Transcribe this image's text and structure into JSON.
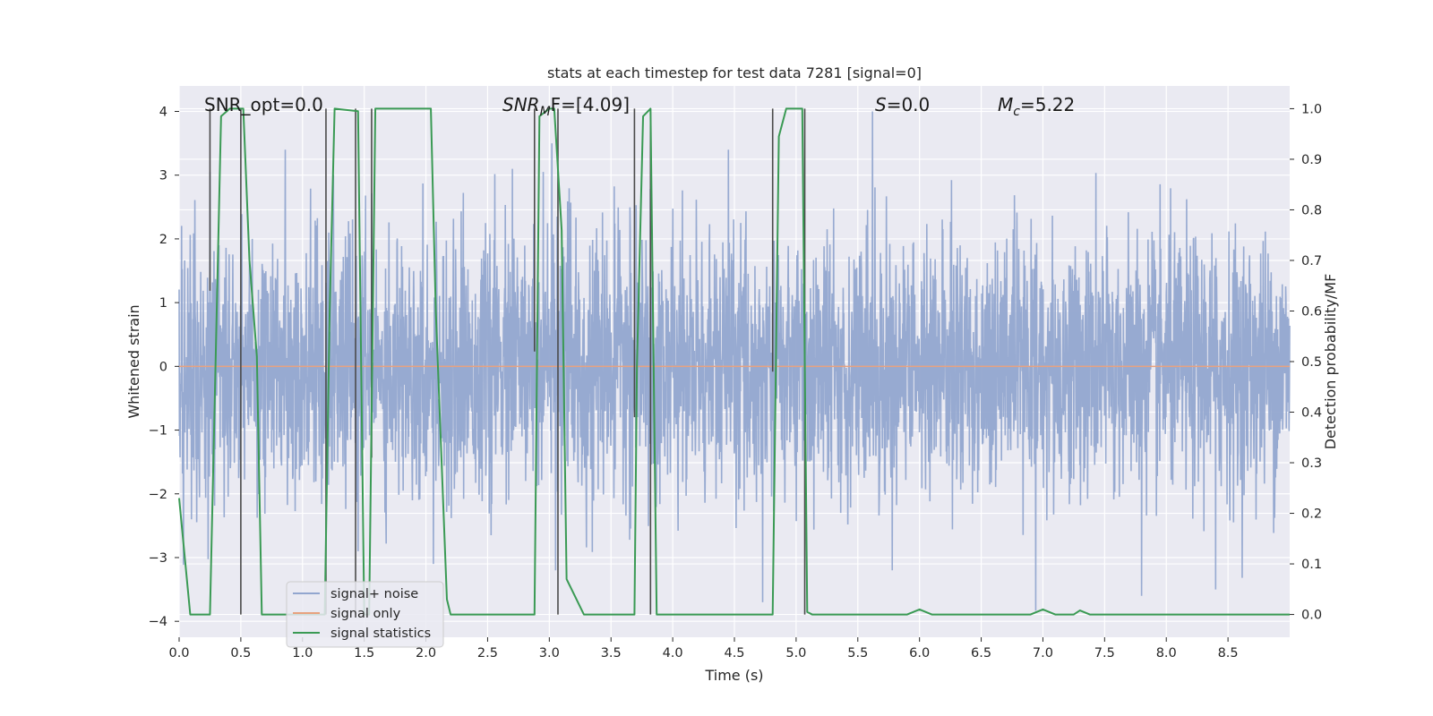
{
  "chart_data": {
    "type": "line",
    "title": "stats at each timestep for test data 7281 [signal=0]",
    "xlabel": "Time (s)",
    "ylabel": "Whitened strain",
    "ylabel_right": "Detection probability/MF",
    "xlim": [
      0.0,
      9.0
    ],
    "ylim": [
      -4.25,
      4.4
    ],
    "ylim_right": [
      -0.045,
      1.045
    ],
    "x_ticks": [
      0.0,
      0.5,
      1.0,
      1.5,
      2.0,
      2.5,
      3.0,
      3.5,
      4.0,
      4.5,
      5.0,
      5.5,
      6.0,
      6.5,
      7.0,
      7.5,
      8.0,
      8.5
    ],
    "x_tick_labels": [
      "0.0",
      "0.5",
      "1.0",
      "1.5",
      "2.0",
      "2.5",
      "3.0",
      "3.5",
      "4.0",
      "4.5",
      "5.0",
      "5.5",
      "6.0",
      "6.5",
      "7.0",
      "7.5",
      "8.0",
      "8.5"
    ],
    "y_ticks": [
      4,
      3,
      2,
      1,
      0,
      -1,
      -2,
      -3,
      -4
    ],
    "y_tick_labels": [
      "4",
      "3",
      "2",
      "1",
      "0",
      "−1",
      "−2",
      "−3",
      "−4"
    ],
    "y_right_ticks": [
      1.0,
      0.9,
      0.8,
      0.7,
      0.6,
      0.5,
      0.4,
      0.3,
      0.2,
      0.1,
      0.0
    ],
    "y_right_tick_labels": [
      "1.0",
      "0.9",
      "0.8",
      "0.7",
      "0.6",
      "0.5",
      "0.4",
      "0.3",
      "0.2",
      "0.1",
      "0.0"
    ],
    "annotations": {
      "snr_opt": "SNR_opt=0.0",
      "snr_mf_main": "SNR",
      "snr_mf_sub": "M",
      "snr_mf_rest": "F=[4.09]",
      "s_main": "S",
      "s_rest": "=0.0",
      "mc_main": "M",
      "mc_sub": "c",
      "mc_rest": "=5.22"
    },
    "legend": {
      "position": "lower-left",
      "entries": [
        {
          "label": "signal+ noise",
          "color": "#92a6cf"
        },
        {
          "label": "signal only",
          "color": "#e8a27f"
        },
        {
          "label": "signal statistics",
          "color": "#3a9a54"
        }
      ]
    },
    "series": [
      {
        "name": "signal+ noise",
        "axis": "left",
        "color": "#92a6cf",
        "kind": "noise",
        "sigma": 1.0,
        "max_abs": 4.0,
        "samples": 3600,
        "notable_peaks": [
          [
            0.25,
            3.05
          ],
          [
            0.86,
            3.4
          ],
          [
            1.25,
            3.0
          ],
          [
            2.7,
            3.1
          ],
          [
            2.95,
            3.05
          ],
          [
            3.02,
            3.5
          ],
          [
            4.45,
            3.4
          ],
          [
            5.62,
            4.0
          ],
          [
            8.4,
            3.4
          ],
          [
            0.1,
            -2.4
          ],
          [
            1.45,
            -2.9
          ],
          [
            2.06,
            -3.1
          ],
          [
            3.05,
            -3.2
          ],
          [
            4.73,
            -3.7
          ],
          [
            5.78,
            -3.2
          ],
          [
            7.8,
            -3.6
          ],
          [
            8.4,
            -3.5
          ]
        ]
      },
      {
        "name": "signal only",
        "axis": "left",
        "color": "#e8a27f",
        "x": [
          0.0,
          9.0
        ],
        "y": [
          0.0,
          0.0
        ]
      },
      {
        "name": "signal statistics",
        "axis": "right",
        "color": "#3a9a54",
        "x": [
          0.0,
          0.09,
          0.25,
          0.34,
          0.41,
          0.49,
          0.52,
          0.57,
          0.63,
          0.67,
          1.18,
          1.22,
          1.26,
          1.45,
          1.5,
          1.54,
          1.59,
          2.04,
          2.08,
          2.17,
          2.2,
          2.27,
          2.31,
          2.88,
          2.92,
          3.0,
          3.04,
          3.1,
          3.14,
          3.2,
          3.28,
          3.33,
          3.69,
          3.71,
          3.76,
          3.82,
          3.87,
          3.94,
          4.81,
          4.86,
          4.92,
          5.05,
          5.09,
          5.13,
          5.2,
          5.4,
          5.9,
          6.0,
          6.1,
          6.9,
          7.0,
          7.1,
          7.25,
          7.3,
          7.38,
          9.0
        ],
        "y": [
          0.23,
          0.0,
          0.0,
          0.985,
          1.0,
          1.0,
          1.0,
          0.7,
          0.51,
          0.0,
          0.0,
          0.6,
          1.0,
          0.995,
          0.0,
          0.0,
          1.0,
          1.0,
          0.6,
          0.03,
          0.0,
          0.0,
          0.0,
          0.0,
          0.985,
          1.0,
          1.0,
          0.76,
          0.07,
          0.04,
          0.0,
          0.0,
          0.0,
          0.49,
          0.985,
          1.0,
          0.0,
          0.0,
          0.0,
          0.945,
          1.0,
          1.0,
          0.005,
          0.0,
          0.0,
          0.0,
          0.0,
          0.01,
          0.0,
          0.0,
          0.01,
          0.0,
          0.0,
          0.008,
          0.0,
          0.0
        ]
      }
    ],
    "vertical_lines": {
      "color": "#4a4a4a",
      "segments": [
        {
          "x": 0.25,
          "y_top": 1.0,
          "y_bottom": 0.64
        },
        {
          "x": 0.5,
          "y_top": 1.0,
          "y_bottom": 0.0
        },
        {
          "x": 1.19,
          "y_top": 1.0,
          "y_bottom": 0.0
        },
        {
          "x": 1.43,
          "y_top": 1.0,
          "y_bottom": 0.0
        },
        {
          "x": 1.56,
          "y_top": 1.0,
          "y_bottom": 0.31
        },
        {
          "x": 2.88,
          "y_top": 1.0,
          "y_bottom": 0.52
        },
        {
          "x": 3.07,
          "y_top": 1.0,
          "y_bottom": 0.0
        },
        {
          "x": 3.69,
          "y_top": 1.0,
          "y_bottom": 0.39
        },
        {
          "x": 3.82,
          "y_top": 1.0,
          "y_bottom": 0.0
        },
        {
          "x": 4.81,
          "y_top": 1.0,
          "y_bottom": 0.48
        },
        {
          "x": 5.07,
          "y_top": 1.0,
          "y_bottom": 0.0
        }
      ]
    }
  }
}
